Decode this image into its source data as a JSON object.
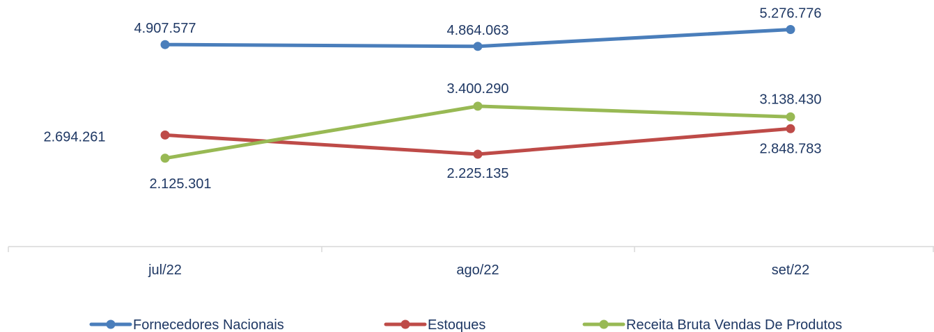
{
  "chart_data": {
    "type": "line",
    "categories": [
      "jul/22",
      "ago/22",
      "set/22"
    ],
    "series": [
      {
        "name": "Fornecedores Nacionais",
        "color": "#4a7ebb",
        "values": [
          4907577,
          4864063,
          5276776
        ],
        "labels": [
          "4.907.577",
          "4.864.063",
          "5.276.776"
        ]
      },
      {
        "name": "Estoques",
        "color": "#be4b48",
        "values": [
          2694261,
          2225135,
          2848783
        ],
        "labels": [
          "2.694.261",
          "2.225.135",
          "2.848.783"
        ]
      },
      {
        "name": "Receita Bruta Vendas De Produtos",
        "color": "#98b954",
        "values": [
          2125301,
          3400290,
          3138430
        ],
        "labels": [
          "2.125.301",
          "3.400.290",
          "3.138.430"
        ]
      }
    ],
    "legend_position": "bottom",
    "grid": false
  }
}
